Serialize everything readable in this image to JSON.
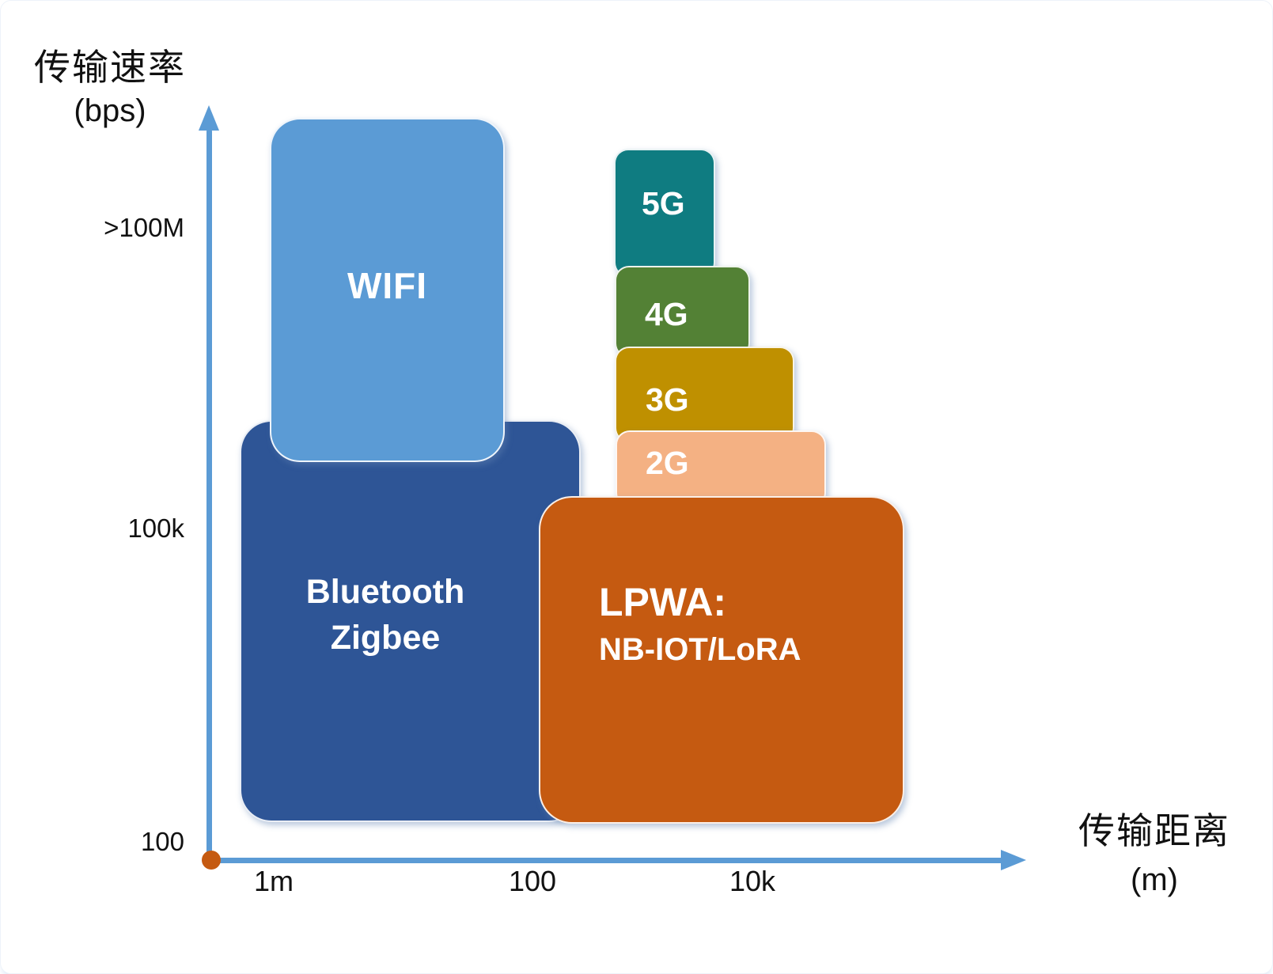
{
  "y_axis": {
    "title": "传输速率",
    "unit": "(bps)",
    "ticks": [
      ">100M",
      "100k",
      "100"
    ]
  },
  "x_axis": {
    "title": "传输距离",
    "unit": "(m)",
    "ticks": [
      "1m",
      "100",
      "10k"
    ]
  },
  "colors": {
    "axis": "#5B9BD5",
    "origin_dot": "#C55A11"
  },
  "boxes": {
    "wifi": {
      "label": "WIFI",
      "color": "#5B9BD5"
    },
    "bluetooth_zigbee": {
      "line1": "Bluetooth",
      "line2": "Zigbee",
      "color": "#2E5596"
    },
    "g5": {
      "label": "5G",
      "color": "#0F7C81"
    },
    "g4": {
      "label": "4G",
      "color": "#538135"
    },
    "g3": {
      "label": "3G",
      "color": "#BF9000"
    },
    "g2": {
      "label": "2G",
      "color": "#F4B183"
    },
    "lpwa": {
      "line1": "LPWA:",
      "line2": "NB-IOT/LoRA",
      "color": "#C55A11"
    }
  }
}
